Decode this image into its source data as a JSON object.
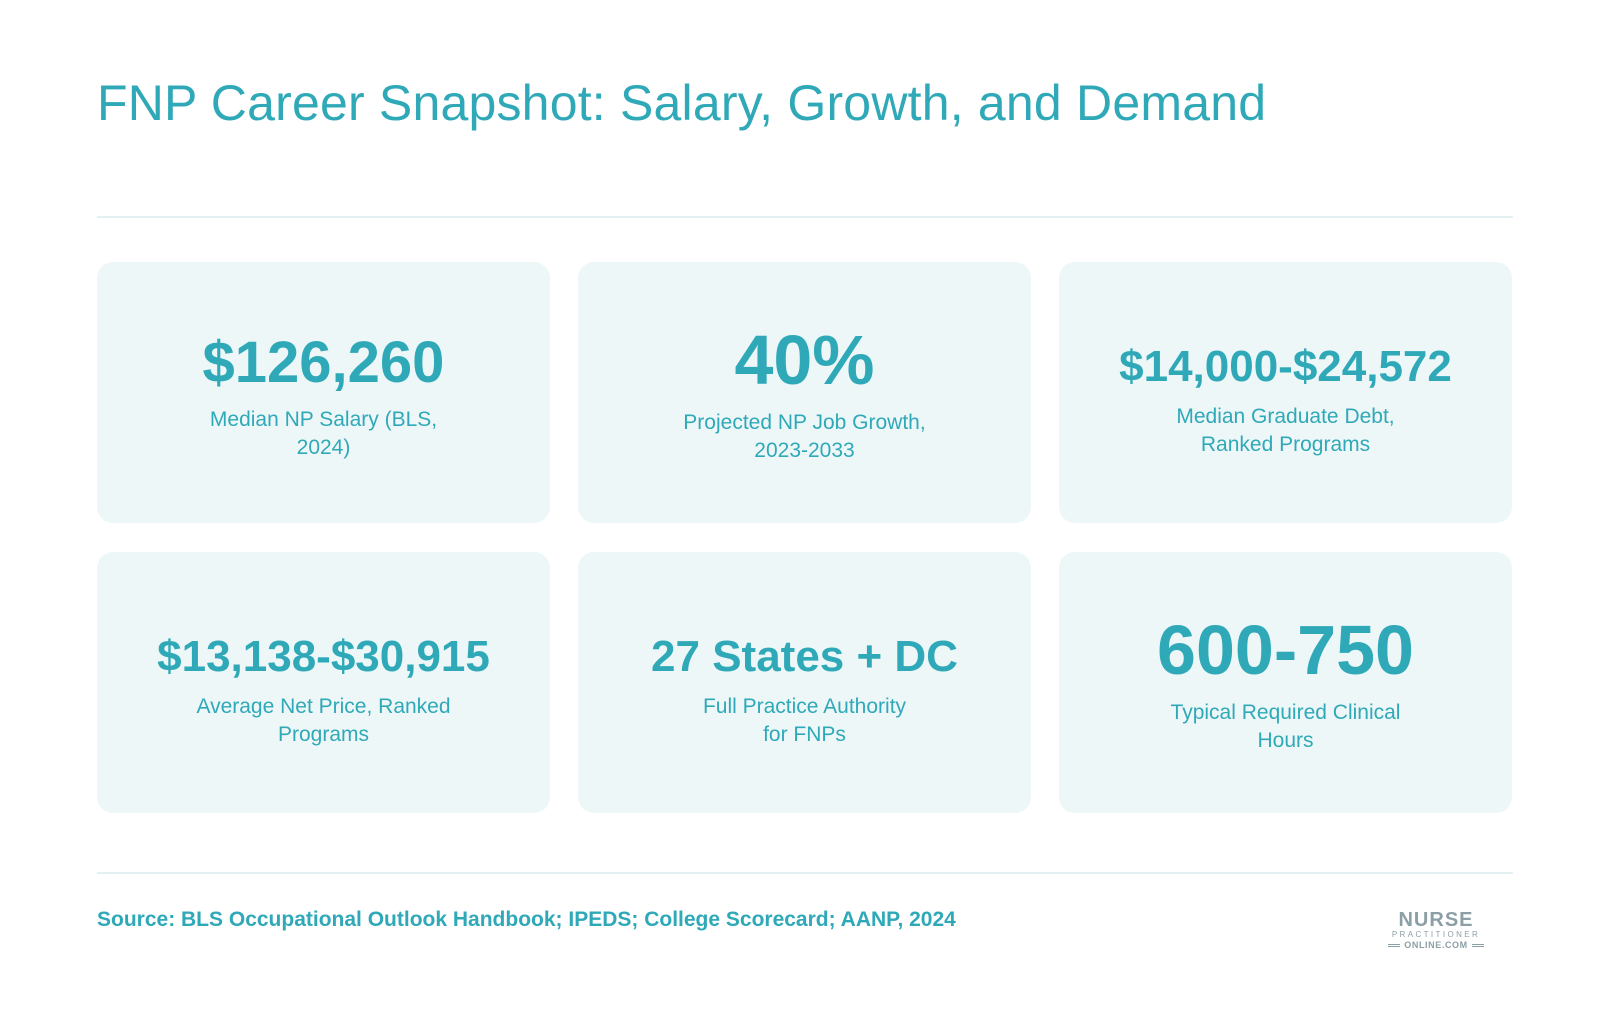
{
  "header": {
    "title": "FNP Career Snapshot: Salary, Growth, and Demand"
  },
  "stats": [
    {
      "value": "$126,260",
      "label": "Median NP Salary (BLS, 2024)"
    },
    {
      "value": "40%",
      "label": "Projected NP Job Growth, 2023-2033"
    },
    {
      "value": "$14,000-$24,572",
      "label": "Median Graduate Debt, Ranked Programs"
    },
    {
      "value": "$13,138-$30,915",
      "label": "Average Net Price, Ranked Programs"
    },
    {
      "value": "27 States + DC",
      "label": "Full Practice Authority for FNPs"
    },
    {
      "value": "600-750",
      "label": "Typical Required Clinical Hours"
    }
  ],
  "footer": {
    "source": "Source: BLS Occupational Outlook Handbook; IPEDS; College Scorecard; AANP, 2024"
  },
  "logo": {
    "line1": "NURSE",
    "line2": "PRACTITIONER",
    "line3": "ONLINE.COM"
  },
  "colors": {
    "accent": "#2fa9b8",
    "card_background": "#eef7f8",
    "divider": "#e3f1f3",
    "logo_gray": "#8d9fa6"
  }
}
